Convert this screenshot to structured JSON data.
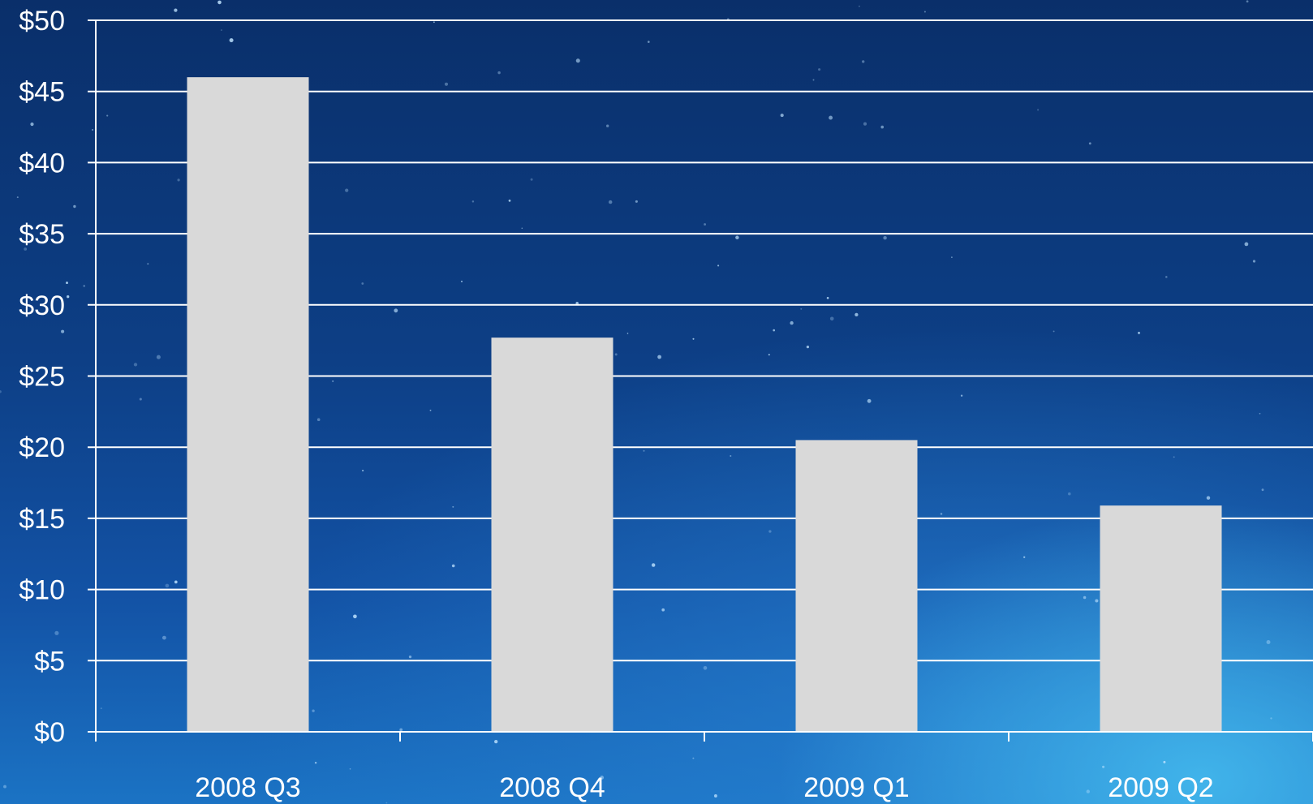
{
  "chart_data": {
    "type": "bar",
    "title": "",
    "xlabel": "",
    "ylabel": "",
    "categories": [
      "2008 Q3",
      "2008 Q4",
      "2009 Q1",
      "2009 Q2"
    ],
    "values": [
      46,
      27.7,
      20.5,
      15.9
    ],
    "ylim": [
      0,
      50
    ],
    "yticks": [
      0,
      5,
      10,
      15,
      20,
      25,
      30,
      35,
      40,
      45,
      50
    ],
    "ytick_labels": [
      "$0",
      "$5",
      "$10",
      "$15",
      "$20",
      "$25",
      "$30",
      "$35",
      "$40",
      "$45",
      "$50"
    ],
    "grid": true,
    "legend": "none",
    "colors": {
      "bar": "#d9d9d9",
      "grid": "#ffffff",
      "text": "#ffffff",
      "background": "#0d3f86"
    }
  }
}
